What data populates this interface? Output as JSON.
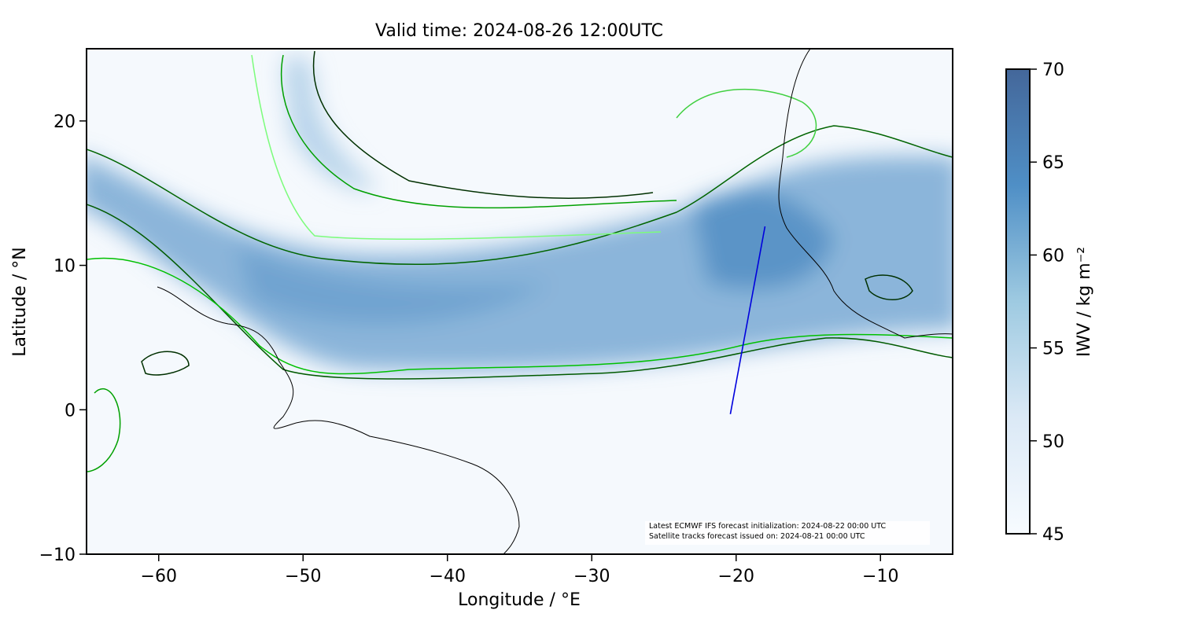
{
  "title": "Valid time: 2024-08-26 12:00UTC",
  "xlabel": "Longitude / °E",
  "ylabel": "Latitude / °N",
  "xlim": [
    -65,
    -5
  ],
  "ylim": [
    -10,
    25
  ],
  "xticks": [
    {
      "value": -60,
      "label": "−60"
    },
    {
      "value": -50,
      "label": "−50"
    },
    {
      "value": -40,
      "label": "−40"
    },
    {
      "value": -30,
      "label": "−30"
    },
    {
      "value": -20,
      "label": "−20"
    },
    {
      "value": -10,
      "label": "−10"
    }
  ],
  "yticks": [
    {
      "value": -10,
      "label": "−10"
    },
    0,
    10,
    20
  ],
  "colorbar": {
    "label": "IWV / kg m⁻²",
    "lim": [
      45,
      70
    ],
    "ticks": [
      45,
      50,
      55,
      60,
      65,
      70
    ]
  },
  "annotations": [
    "Latest ECMWF IFS forecast initialization: 2024-08-22 00:00 UTC",
    "Satellite tracks forecast issued on: 2024-08-21 00:00 UTC"
  ],
  "track": {
    "color": "#0000dd",
    "lon": [
      -20.4,
      -18.0
    ],
    "lat": [
      -0.3,
      12.7
    ]
  }
}
